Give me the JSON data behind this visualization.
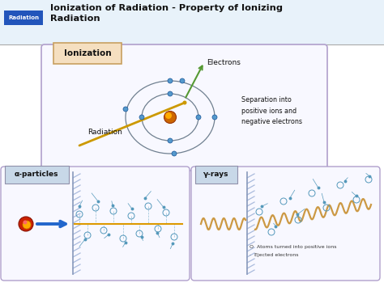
{
  "title_line1": "Ionization of Radiation - Property of Ionizing",
  "title_line2": "Radiation",
  "title_tag": "Radiation",
  "title_tag_bg": "#2255bb",
  "title_tag_fg": "#ffffff",
  "header_bg_top": "#e8f2fa",
  "header_bg_bot": "#c8dff0",
  "bg_color": "#ffffff",
  "ionization_label": "Ionization",
  "ionization_box_bg": "#f5dfc0",
  "ionization_box_border": "#c8a060",
  "main_box_border": "#b0a0cc",
  "main_box_bg": "#f8f8ff",
  "electrons_label": "Electrons",
  "radiation_label": "Radiation",
  "separation_label": "Separation into\npositive ions and\nnegative electrons",
  "orbit_color": "#708090",
  "electron_color": "#5599cc",
  "nucleus_color_outer": "#cc6600",
  "nucleus_color_inner": "#ffaa00",
  "radiation_line_color": "#cc9900",
  "arrow_green": "#559933",
  "alpha_label": "α-particles",
  "gamma_label": "γ-rays",
  "box_border": "#b0a0cc",
  "box_bg": "#f8f8ff",
  "tag_bg": "#c8d8e8",
  "tag_border": "#9090aa",
  "barrier_color": "#aabbdd",
  "alpha_line_color": "#dd9900",
  "gamma_wave_color": "#cc9944",
  "scatter_color": "#5599bb",
  "legend_circle": "O  Atoms turned into positive ions",
  "legend_dot": "·  Ejected electrons",
  "arrow_color": "#2266cc",
  "sep_line_color": "#aaaaaa"
}
